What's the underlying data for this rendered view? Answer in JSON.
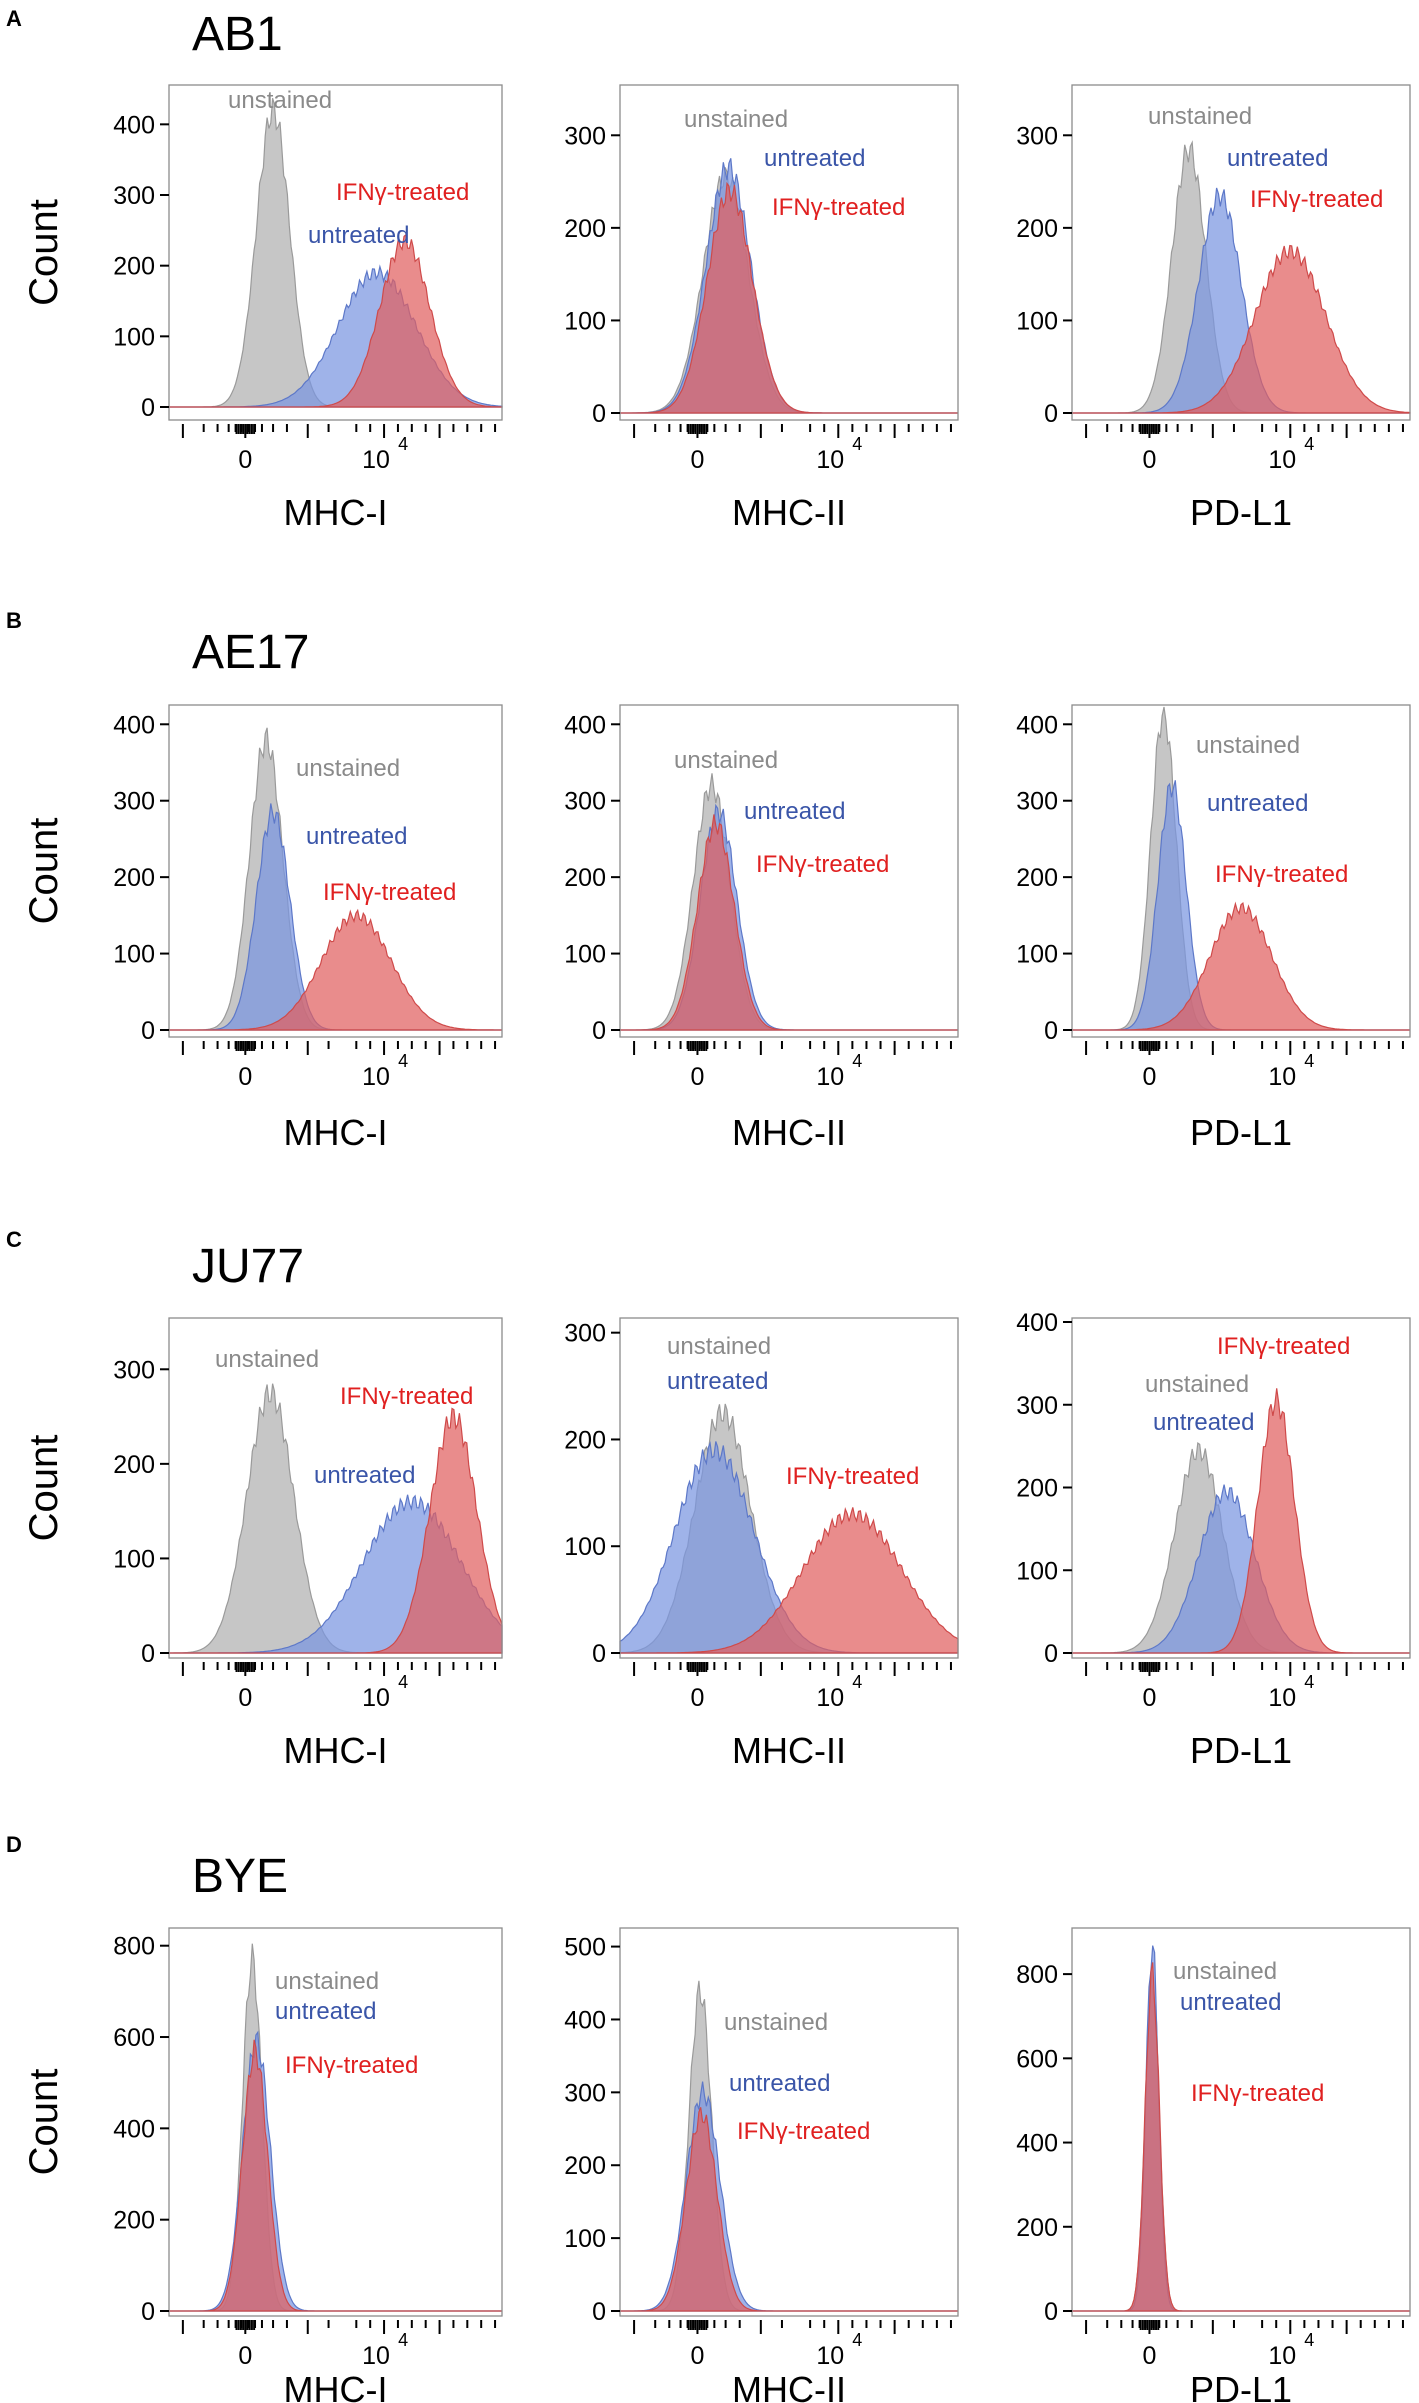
{
  "figure": {
    "y_axis_label": "Count",
    "colors": {
      "unstained": "#8a8a8a",
      "untreated": "#3a55a8",
      "ifng": "#e02020",
      "unstained_fill": "#bcbcbc",
      "untreated_fill": "#7a96e0",
      "ifng_fill": "#e0605f"
    }
  },
  "chart_data": [
    {
      "type": "area",
      "panel": "A",
      "cell_line": "AB1",
      "xlabel": "MHC-I",
      "ylabel": "Count",
      "ylim": [
        0,
        450
      ],
      "yticks": [
        0,
        100,
        200,
        300,
        400
      ],
      "xticks": [
        "0",
        "10"
      ],
      "xtick_exp": "4",
      "legend": [
        "unstained",
        "untreated",
        "IFNγ-treated"
      ],
      "series": [
        {
          "name": "unstained",
          "peak_x": 0.2,
          "peak_count": 420,
          "width": 0.12
        },
        {
          "name": "untreated",
          "peak_x": 0.95,
          "peak_count": 190,
          "width": 0.28
        },
        {
          "name": "IFNγ-treated",
          "peak_x": 1.15,
          "peak_count": 235,
          "width": 0.18
        }
      ]
    },
    {
      "type": "area",
      "panel": "A",
      "cell_line": "AB1",
      "xlabel": "MHC-II",
      "ylabel": "Count",
      "ylim": [
        0,
        350
      ],
      "yticks": [
        0,
        100,
        200,
        300
      ],
      "xticks": [
        "0",
        "10"
      ],
      "xtick_exp": "4",
      "legend": [
        "unstained",
        "untreated",
        "IFNγ-treated"
      ],
      "series": [
        {
          "name": "unstained",
          "peak_x": 0.2,
          "peak_count": 255,
          "width": 0.16
        },
        {
          "name": "untreated",
          "peak_x": 0.22,
          "peak_count": 265,
          "width": 0.16
        },
        {
          "name": "IFNγ-treated",
          "peak_x": 0.23,
          "peak_count": 240,
          "width": 0.16
        }
      ]
    },
    {
      "type": "area",
      "panel": "A",
      "cell_line": "AB1",
      "xlabel": "PD-L1",
      "ylabel": "Count",
      "ylim": [
        0,
        350
      ],
      "yticks": [
        0,
        100,
        200,
        300
      ],
      "xticks": [
        "0",
        "10"
      ],
      "xtick_exp": "4",
      "legend": [
        "unstained",
        "untreated",
        "IFNγ-treated"
      ],
      "series": [
        {
          "name": "unstained",
          "peak_x": 0.28,
          "peak_count": 285,
          "width": 0.12
        },
        {
          "name": "untreated",
          "peak_x": 0.5,
          "peak_count": 235,
          "width": 0.15
        },
        {
          "name": "IFNγ-treated",
          "peak_x": 1.0,
          "peak_count": 175,
          "width": 0.25
        }
      ]
    },
    {
      "type": "area",
      "panel": "B",
      "cell_line": "AE17",
      "xlabel": "MHC-I",
      "ylabel": "Count",
      "ylim": [
        0,
        420
      ],
      "yticks": [
        0,
        100,
        200,
        300,
        400
      ],
      "xticks": [
        "0",
        "10"
      ],
      "xtick_exp": "4",
      "legend": [
        "unstained",
        "untreated",
        "IFNγ-treated"
      ],
      "series": [
        {
          "name": "unstained",
          "peak_x": 0.15,
          "peak_count": 380,
          "width": 0.12
        },
        {
          "name": "untreated",
          "peak_x": 0.2,
          "peak_count": 285,
          "width": 0.12
        },
        {
          "name": "IFNγ-treated",
          "peak_x": 0.8,
          "peak_count": 150,
          "width": 0.25
        }
      ]
    },
    {
      "type": "area",
      "panel": "B",
      "cell_line": "AE17",
      "xlabel": "MHC-II",
      "ylabel": "Count",
      "ylim": [
        0,
        420
      ],
      "yticks": [
        0,
        100,
        200,
        300,
        400
      ],
      "xticks": [
        "0",
        "10"
      ],
      "xtick_exp": "4",
      "legend": [
        "unstained",
        "untreated",
        "IFNγ-treated"
      ],
      "series": [
        {
          "name": "unstained",
          "peak_x": 0.1,
          "peak_count": 320,
          "width": 0.13
        },
        {
          "name": "untreated",
          "peak_x": 0.15,
          "peak_count": 285,
          "width": 0.13
        },
        {
          "name": "IFNγ-treated",
          "peak_x": 0.13,
          "peak_count": 270,
          "width": 0.13
        }
      ]
    },
    {
      "type": "area",
      "panel": "B",
      "cell_line": "AE17",
      "xlabel": "PD-L1",
      "ylabel": "Count",
      "ylim": [
        0,
        420
      ],
      "yticks": [
        0,
        100,
        200,
        300,
        400
      ],
      "xticks": [
        "0",
        "10"
      ],
      "xtick_exp": "4",
      "legend": [
        "unstained",
        "untreated",
        "IFNγ-treated"
      ],
      "series": [
        {
          "name": "unstained",
          "peak_x": 0.1,
          "peak_count": 415,
          "width": 0.09
        },
        {
          "name": "untreated",
          "peak_x": 0.16,
          "peak_count": 320,
          "width": 0.1
        },
        {
          "name": "IFNγ-treated",
          "peak_x": 0.65,
          "peak_count": 160,
          "width": 0.22
        }
      ]
    },
    {
      "type": "area",
      "panel": "C",
      "cell_line": "JU77",
      "xlabel": "MHC-I",
      "ylabel": "Count",
      "ylim": [
        0,
        350
      ],
      "yticks": [
        0,
        100,
        200,
        300
      ],
      "xticks": [
        "0",
        "10"
      ],
      "xtick_exp": "4",
      "legend": [
        "unstained",
        "untreated",
        "IFNγ-treated"
      ],
      "series": [
        {
          "name": "unstained",
          "peak_x": 0.18,
          "peak_count": 275,
          "width": 0.17
        },
        {
          "name": "untreated",
          "peak_x": 1.2,
          "peak_count": 160,
          "width": 0.35
        },
        {
          "name": "IFNγ-treated",
          "peak_x": 1.5,
          "peak_count": 250,
          "width": 0.17
        }
      ]
    },
    {
      "type": "area",
      "panel": "C",
      "cell_line": "JU77",
      "xlabel": "MHC-II",
      "ylabel": "Count",
      "ylim": [
        0,
        310
      ],
      "yticks": [
        0,
        100,
        200,
        300
      ],
      "xticks": [
        "0",
        "10"
      ],
      "xtick_exp": "4",
      "legend": [
        "unstained",
        "untreated",
        "IFNγ-treated"
      ],
      "series": [
        {
          "name": "unstained",
          "peak_x": 0.18,
          "peak_count": 225,
          "width": 0.2
        },
        {
          "name": "untreated",
          "peak_x": 0.12,
          "peak_count": 190,
          "width": 0.28
        },
        {
          "name": "IFNγ-treated",
          "peak_x": 1.1,
          "peak_count": 130,
          "width": 0.35
        }
      ]
    },
    {
      "type": "area",
      "panel": "C",
      "cell_line": "JU77",
      "xlabel": "PD-L1",
      "ylabel": "Count",
      "ylim": [
        0,
        400
      ],
      "yticks": [
        0,
        100,
        200,
        300,
        400
      ],
      "xticks": [
        "0",
        "10"
      ],
      "xtick_exp": "4",
      "legend": [
        "IFNγ-treated",
        "unstained",
        "untreated"
      ],
      "series": [
        {
          "name": "unstained",
          "peak_x": 0.35,
          "peak_count": 245,
          "width": 0.17
        },
        {
          "name": "untreated",
          "peak_x": 0.55,
          "peak_count": 195,
          "width": 0.2
        },
        {
          "name": "IFNγ-treated",
          "peak_x": 0.9,
          "peak_count": 305,
          "width": 0.13
        }
      ]
    },
    {
      "type": "area",
      "panel": "D",
      "cell_line": "BYE",
      "xlabel": "MHC-I",
      "ylabel": "Count",
      "ylim": [
        0,
        830
      ],
      "yticks": [
        0,
        200,
        400,
        600,
        800
      ],
      "xticks": [
        "0",
        "10"
      ],
      "xtick_exp": "4",
      "legend": [
        "unstained",
        "untreated",
        "IFNγ-treated"
      ],
      "series": [
        {
          "name": "unstained",
          "peak_x": 0.05,
          "peak_count": 770,
          "width": 0.07
        },
        {
          "name": "untreated",
          "peak_x": 0.08,
          "peak_count": 590,
          "width": 0.1
        },
        {
          "name": "IFNγ-treated",
          "peak_x": 0.07,
          "peak_count": 570,
          "width": 0.09
        }
      ]
    },
    {
      "type": "area",
      "panel": "D",
      "cell_line": "BYE",
      "xlabel": "MHC-II",
      "ylabel": "Count",
      "ylim": [
        0,
        520
      ],
      "yticks": [
        0,
        100,
        200,
        300,
        400,
        500
      ],
      "xticks": [
        "0",
        "10"
      ],
      "xtick_exp": "4",
      "legend": [
        "unstained",
        "untreated",
        "IFNγ-treated"
      ],
      "series": [
        {
          "name": "unstained",
          "peak_x": 0.02,
          "peak_count": 440,
          "width": 0.08
        },
        {
          "name": "untreated",
          "peak_x": 0.04,
          "peak_count": 300,
          "width": 0.12
        },
        {
          "name": "IFNγ-treated",
          "peak_x": 0.03,
          "peak_count": 270,
          "width": 0.11
        }
      ]
    },
    {
      "type": "area",
      "panel": "D",
      "cell_line": "BYE",
      "xlabel": "PD-L1",
      "ylabel": "Count",
      "ylim": [
        0,
        900
      ],
      "yticks": [
        0,
        200,
        400,
        600,
        800
      ],
      "xticks": [
        "0",
        "10"
      ],
      "xtick_exp": "4",
      "legend": [
        "unstained",
        "untreated",
        "IFNγ-treated"
      ],
      "series": [
        {
          "name": "unstained",
          "peak_x": 0.02,
          "peak_count": 790,
          "width": 0.05
        },
        {
          "name": "untreated",
          "peak_x": 0.02,
          "peak_count": 870,
          "width": 0.045
        },
        {
          "name": "IFNγ-treated",
          "peak_x": 0.02,
          "peak_count": 800,
          "width": 0.05
        }
      ]
    }
  ]
}
